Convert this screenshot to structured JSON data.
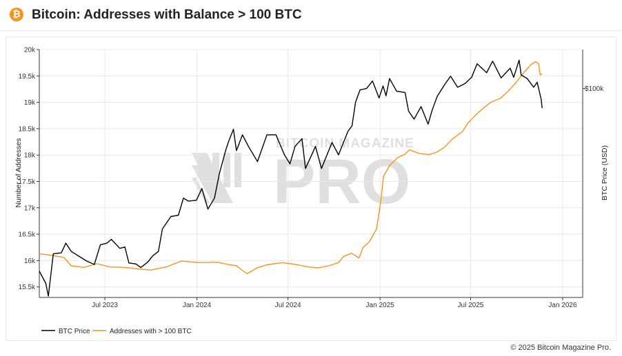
{
  "header": {
    "logo_glyph": "₿",
    "title": "Bitcoin: Addresses with Balance > 100 BTC"
  },
  "watermark": {
    "top_text": "BITCOIN MAGAZINE",
    "big_text": "PRO"
  },
  "footer": {
    "copyright": "© 2025 Bitcoin Magazine Pro."
  },
  "colors": {
    "btc_price": "#000000",
    "addresses": "#f7931a",
    "logo": "#f7931a",
    "grid": "#e8e8e8"
  },
  "chart_data": {
    "type": "line",
    "title": "Bitcoin: Addresses with Balance > 100 BTC",
    "xlabel": "",
    "x_range": [
      "2023-02-20",
      "2026-02-10"
    ],
    "x_ticks": [
      {
        "date": "2023-07-01",
        "label": "Jul 2023"
      },
      {
        "date": "2024-01-01",
        "label": "Jan 2024"
      },
      {
        "date": "2024-07-01",
        "label": "Jul 2024"
      },
      {
        "date": "2025-01-01",
        "label": "Jan 2025"
      },
      {
        "date": "2025-07-01",
        "label": "Jul 2025"
      },
      {
        "date": "2026-01-01",
        "label": "Jan 2026"
      }
    ],
    "y_left": {
      "label": "Number of Addresses",
      "range": [
        15300,
        20000
      ],
      "ticks": [
        {
          "value": 15500,
          "label": "15.5k"
        },
        {
          "value": 16000,
          "label": "16k"
        },
        {
          "value": 16500,
          "label": "16.5k"
        },
        {
          "value": 17000,
          "label": "17k"
        },
        {
          "value": 17500,
          "label": "17.5k"
        },
        {
          "value": 18000,
          "label": "18k"
        },
        {
          "value": 18500,
          "label": "18.5k"
        },
        {
          "value": 19000,
          "label": "19k"
        },
        {
          "value": 19500,
          "label": "19.5k"
        },
        {
          "value": 20000,
          "label": "20k"
        }
      ]
    },
    "y_right": {
      "label": "BTC Price (USD)",
      "scale": "log",
      "range": [
        20000,
        135000
      ],
      "ticks": [
        {
          "value": 100000,
          "label": "$100k"
        }
      ]
    },
    "grid": true,
    "legend_position": "bottom-left",
    "series": [
      {
        "name": "BTC Price",
        "axis": "right",
        "points": [
          [
            "2023-02-20",
            24500
          ],
          [
            "2023-03-05",
            22300
          ],
          [
            "2023-03-10",
            20200
          ],
          [
            "2023-03-20",
            28000
          ],
          [
            "2023-04-05",
            28200
          ],
          [
            "2023-04-14",
            30400
          ],
          [
            "2023-04-25",
            28500
          ],
          [
            "2023-05-10",
            27500
          ],
          [
            "2023-05-25",
            26500
          ],
          [
            "2023-06-10",
            25800
          ],
          [
            "2023-06-22",
            30000
          ],
          [
            "2023-07-05",
            30400
          ],
          [
            "2023-07-14",
            31300
          ],
          [
            "2023-07-31",
            29200
          ],
          [
            "2023-08-10",
            29500
          ],
          [
            "2023-08-18",
            26100
          ],
          [
            "2023-09-01",
            25900
          ],
          [
            "2023-09-11",
            25200
          ],
          [
            "2023-09-25",
            26300
          ],
          [
            "2023-10-05",
            27600
          ],
          [
            "2023-10-16",
            28500
          ],
          [
            "2023-10-24",
            33900
          ],
          [
            "2023-11-10",
            37300
          ],
          [
            "2023-11-25",
            37700
          ],
          [
            "2023-12-05",
            43000
          ],
          [
            "2023-12-15",
            42000
          ],
          [
            "2023-12-31",
            42300
          ],
          [
            "2024-01-11",
            46300
          ],
          [
            "2024-01-23",
            39500
          ],
          [
            "2024-02-05",
            43000
          ],
          [
            "2024-02-15",
            52000
          ],
          [
            "2024-02-28",
            62500
          ],
          [
            "2024-03-05",
            67000
          ],
          [
            "2024-03-14",
            73100
          ],
          [
            "2024-03-20",
            62000
          ],
          [
            "2024-04-01",
            70000
          ],
          [
            "2024-04-13",
            64000
          ],
          [
            "2024-05-01",
            57000
          ],
          [
            "2024-05-20",
            70000
          ],
          [
            "2024-06-07",
            70000
          ],
          [
            "2024-06-24",
            60000
          ],
          [
            "2024-07-05",
            56000
          ],
          [
            "2024-07-15",
            64000
          ],
          [
            "2024-07-29",
            68000
          ],
          [
            "2024-08-05",
            54000
          ],
          [
            "2024-08-25",
            64000
          ],
          [
            "2024-09-06",
            54000
          ],
          [
            "2024-09-27",
            66000
          ],
          [
            "2024-10-10",
            60000
          ],
          [
            "2024-10-29",
            72000
          ],
          [
            "2024-11-06",
            75000
          ],
          [
            "2024-11-13",
            90000
          ],
          [
            "2024-11-22",
            99000
          ],
          [
            "2024-12-05",
            100000
          ],
          [
            "2024-12-17",
            106000
          ],
          [
            "2024-12-30",
            93000
          ],
          [
            "2025-01-07",
            102000
          ],
          [
            "2025-01-13",
            94500
          ],
          [
            "2025-01-20",
            108000
          ],
          [
            "2025-02-03",
            98000
          ],
          [
            "2025-02-20",
            97000
          ],
          [
            "2025-02-27",
            84000
          ],
          [
            "2025-03-10",
            79000
          ],
          [
            "2025-03-24",
            87000
          ],
          [
            "2025-04-07",
            76000
          ],
          [
            "2025-04-15",
            84500
          ],
          [
            "2025-04-25",
            94000
          ],
          [
            "2025-05-10",
            103000
          ],
          [
            "2025-05-22",
            110000
          ],
          [
            "2025-06-05",
            101000
          ],
          [
            "2025-06-20",
            104000
          ],
          [
            "2025-07-03",
            109000
          ],
          [
            "2025-07-14",
            121000
          ],
          [
            "2025-08-02",
            113000
          ],
          [
            "2025-08-14",
            123500
          ],
          [
            "2025-08-31",
            108500
          ],
          [
            "2025-09-18",
            117000
          ],
          [
            "2025-09-25",
            109000
          ],
          [
            "2025-10-06",
            124500
          ],
          [
            "2025-10-10",
            111000
          ],
          [
            "2025-10-22",
            108000
          ],
          [
            "2025-11-04",
            101000
          ],
          [
            "2025-11-11",
            105000
          ],
          [
            "2025-11-19",
            92000
          ],
          [
            "2025-11-21",
            86000
          ]
        ]
      },
      {
        "name": "Addresses with > 100 BTC",
        "axis": "left",
        "points": [
          [
            "2023-02-20",
            16130
          ],
          [
            "2023-03-15",
            16100
          ],
          [
            "2023-04-10",
            16060
          ],
          [
            "2023-04-25",
            15900
          ],
          [
            "2023-05-20",
            15870
          ],
          [
            "2023-06-15",
            15940
          ],
          [
            "2023-07-10",
            15880
          ],
          [
            "2023-08-10",
            15870
          ],
          [
            "2023-09-05",
            15840
          ],
          [
            "2023-10-01",
            15820
          ],
          [
            "2023-11-01",
            15880
          ],
          [
            "2023-12-01",
            15990
          ],
          [
            "2024-01-05",
            15960
          ],
          [
            "2024-02-10",
            15970
          ],
          [
            "2024-03-01",
            15930
          ],
          [
            "2024-03-20",
            15900
          ],
          [
            "2024-04-10",
            15750
          ],
          [
            "2024-04-30",
            15860
          ],
          [
            "2024-05-20",
            15920
          ],
          [
            "2024-06-20",
            15960
          ],
          [
            "2024-07-20",
            15920
          ],
          [
            "2024-08-10",
            15880
          ],
          [
            "2024-08-30",
            15860
          ],
          [
            "2024-09-20",
            15900
          ],
          [
            "2024-10-10",
            15960
          ],
          [
            "2024-10-20",
            16080
          ],
          [
            "2024-11-05",
            16140
          ],
          [
            "2024-11-20",
            16050
          ],
          [
            "2024-11-28",
            16250
          ],
          [
            "2024-12-10",
            16350
          ],
          [
            "2024-12-25",
            16600
          ],
          [
            "2025-01-02",
            17100
          ],
          [
            "2025-01-08",
            17600
          ],
          [
            "2025-01-20",
            17800
          ],
          [
            "2025-02-05",
            17950
          ],
          [
            "2025-02-20",
            18020
          ],
          [
            "2025-03-01",
            18100
          ],
          [
            "2025-03-20",
            18030
          ],
          [
            "2025-04-10",
            18010
          ],
          [
            "2025-04-25",
            18060
          ],
          [
            "2025-05-10",
            18150
          ],
          [
            "2025-05-25",
            18300
          ],
          [
            "2025-06-15",
            18450
          ],
          [
            "2025-06-25",
            18600
          ],
          [
            "2025-07-10",
            18750
          ],
          [
            "2025-07-25",
            18880
          ],
          [
            "2025-08-10",
            19000
          ],
          [
            "2025-08-30",
            19080
          ],
          [
            "2025-09-15",
            19220
          ],
          [
            "2025-09-30",
            19380
          ],
          [
            "2025-10-15",
            19560
          ],
          [
            "2025-10-30",
            19720
          ],
          [
            "2025-11-08",
            19770
          ],
          [
            "2025-11-14",
            19730
          ],
          [
            "2025-11-17",
            19520
          ],
          [
            "2025-11-21",
            19540
          ]
        ]
      }
    ]
  }
}
